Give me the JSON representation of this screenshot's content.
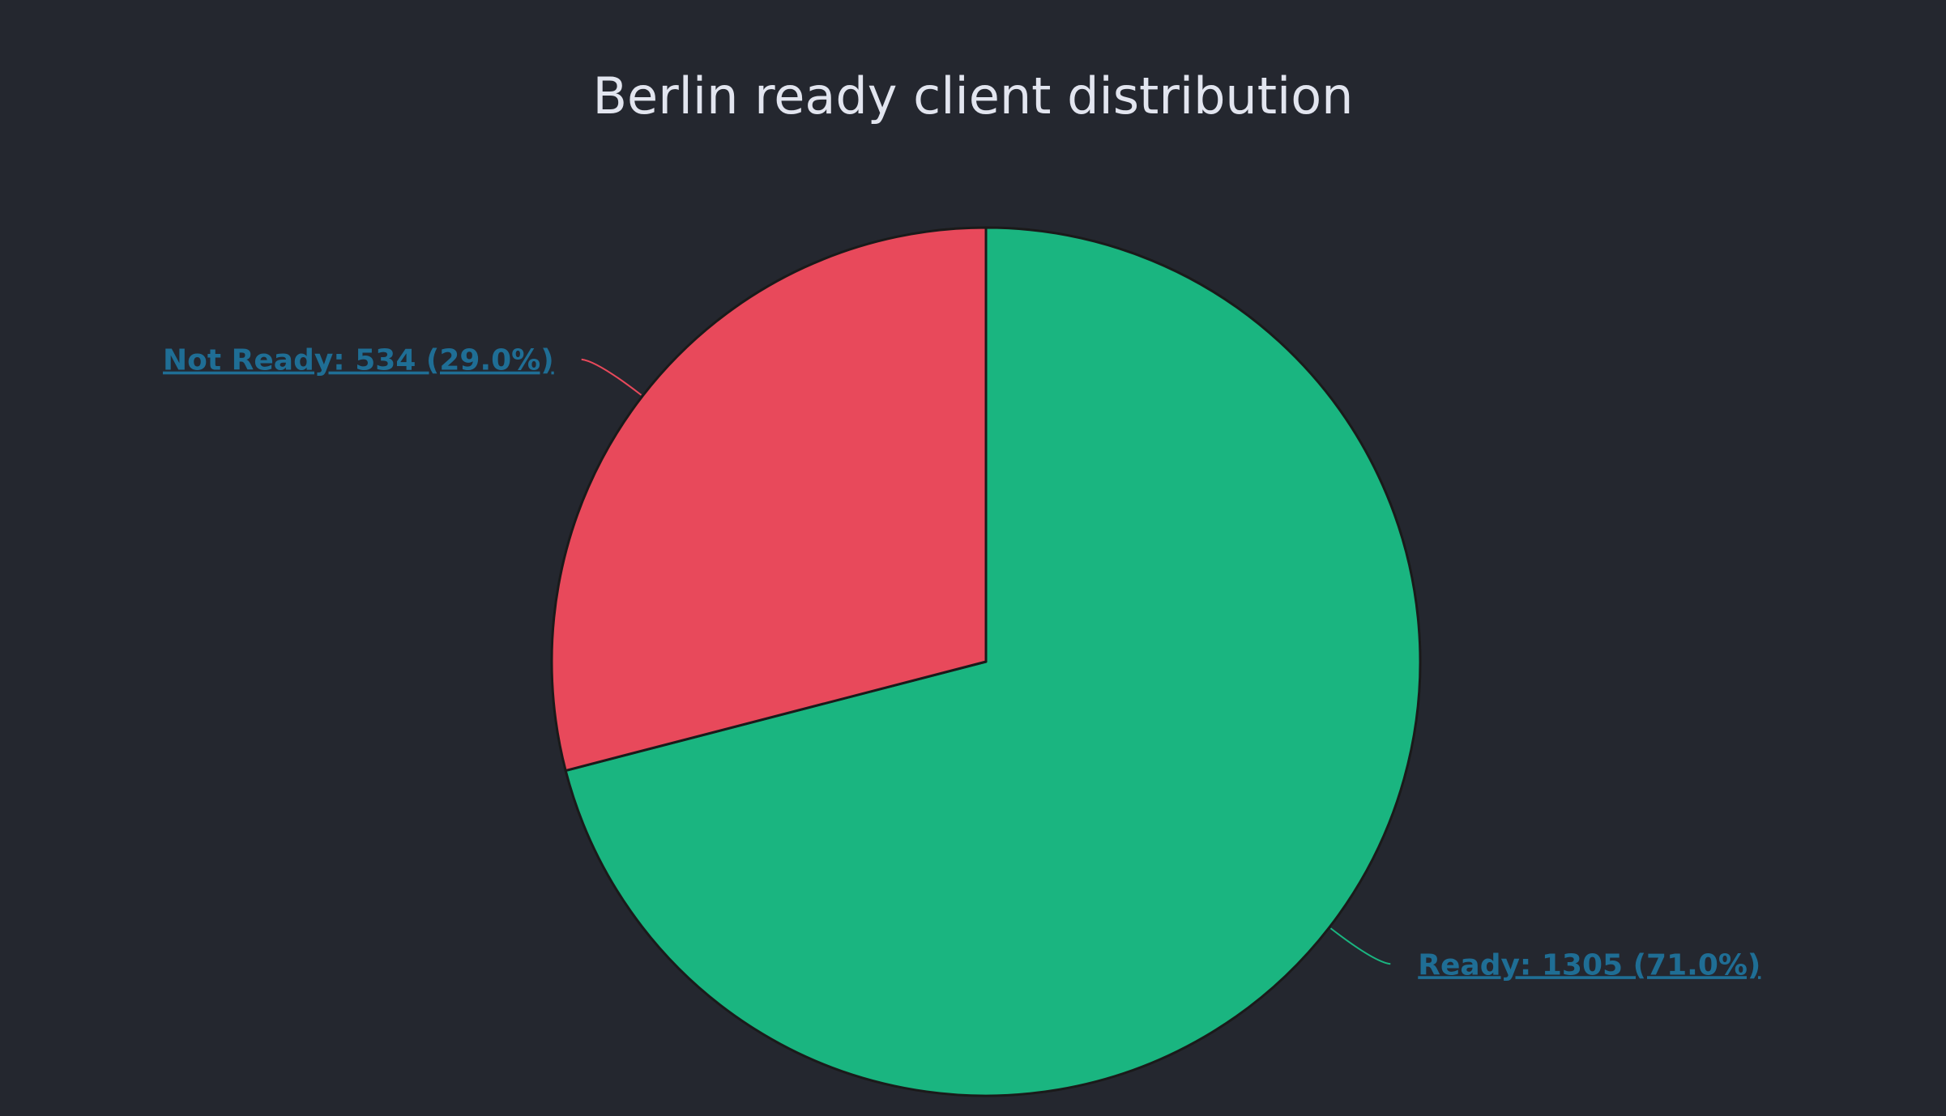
{
  "chart_data": {
    "type": "pie",
    "title": "Berlin ready client distribution",
    "slices": [
      {
        "name": "Ready",
        "value": 1305,
        "percent": 71.0,
        "color": "#1ab580",
        "label": "Ready: 1305 (71.0%)"
      },
      {
        "name": "Not Ready",
        "value": 534,
        "percent": 29.0,
        "color": "#e8495b",
        "label": "Not Ready: 534 (29.0%)"
      }
    ],
    "start_angle": "12 o'clock",
    "direction": "clockwise",
    "label_color": "#1f6e95",
    "slice_border_color": "#1a1a1a",
    "background_color": "#24272f"
  }
}
